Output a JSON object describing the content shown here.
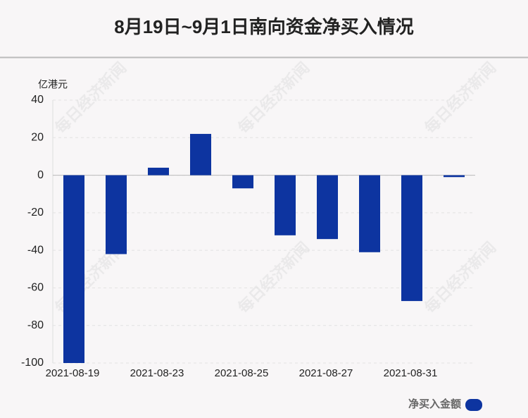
{
  "chart_data": {
    "type": "bar",
    "title": "8月19日~9月1日南向资金净买入情况",
    "y_unit": "亿港元",
    "watermark": "每日经济新闻",
    "categories": [
      "2021-08-19",
      null,
      "2021-08-23",
      null,
      "2021-08-25",
      null,
      "2021-08-27",
      null,
      "2021-08-31",
      null
    ],
    "series": [
      {
        "name": "净买入金额",
        "color": "#0d34a0",
        "values": [
          -100,
          -42,
          4,
          22,
          -7,
          -32,
          -34,
          -41,
          -67,
          -1
        ]
      }
    ],
    "ylim": [
      -100,
      40
    ],
    "yticks": [
      -100,
      -80,
      -60,
      -40,
      -20,
      0,
      20,
      40
    ],
    "grid": true,
    "legend": "bottom-right"
  }
}
